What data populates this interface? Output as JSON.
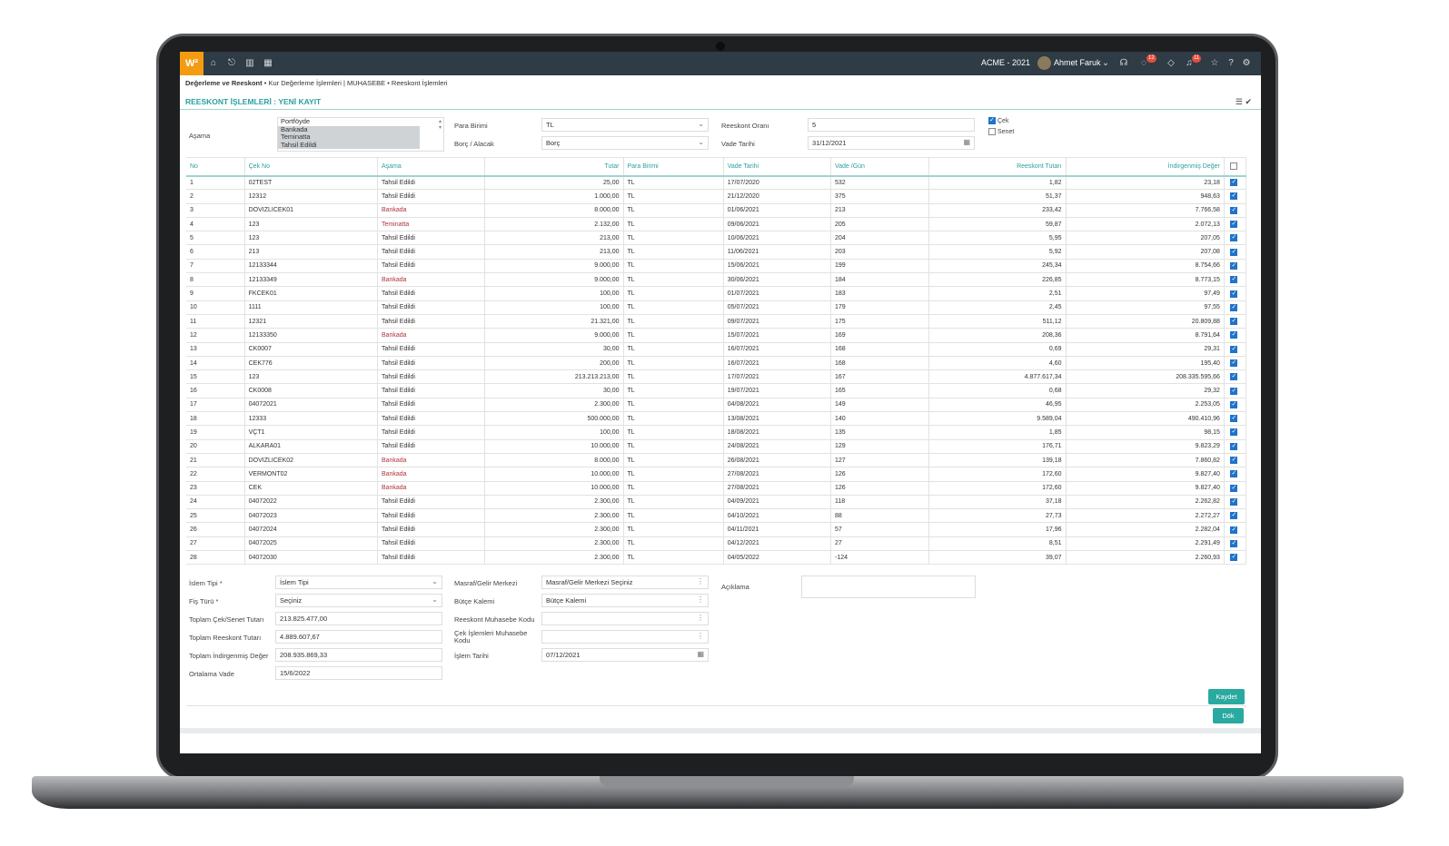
{
  "topbar": {
    "logo": "W²",
    "company": "ACME - 2021",
    "user": "Ahmet Faruk",
    "badge_chat": "12",
    "badge_notif": "11",
    "icons": [
      "home-icon",
      "export-icon",
      "chart-icon",
      "calendar-icon",
      "headset-icon",
      "chat-icon",
      "comment-icon",
      "bell-icon",
      "star-icon",
      "help-icon",
      "gear-icon"
    ]
  },
  "breadcrumb": {
    "root": "Değerleme ve Reeskont",
    "level1": "Kur Değerleme İşlemleri | MUHASEBE",
    "level2": "Reeskont İşlemleri"
  },
  "page_title": "REESKONT İŞLEMLERİ : YENİ KAYIT",
  "filters": {
    "asama_label": "Aşama",
    "asama_options": [
      "Portföyde",
      "Bankada",
      "Teminatta",
      "Tahsil Edildi"
    ],
    "para_birimi_label": "Para Birimi",
    "para_birimi_value": "TL",
    "borc_alacak_label": "Borç / Alacak",
    "borc_alacak_value": "Borç",
    "reeskont_orani_label": "Reeskont Oranı",
    "reeskont_orani_value": "5",
    "vade_tarihi_label": "Vade Tarihi",
    "vade_tarihi_value": "31/12/2021",
    "cek_label": "Çek",
    "senet_label": "Senet"
  },
  "table": {
    "headers": [
      "No",
      "Çek No",
      "Aşama",
      "Tutar",
      "Para Birimi",
      "Vade Tarihi",
      "Vade /Gün",
      "Reeskont Tutarı",
      "İndirgenmiş Değer"
    ],
    "rows": [
      [
        "1",
        "02TEST",
        "Tahsil Edildi",
        "25,00",
        "TL",
        "17/07/2020",
        "532",
        "1,82",
        "23,18"
      ],
      [
        "2",
        "12312",
        "Tahsil Edildi",
        "1.000,00",
        "TL",
        "21/12/2020",
        "375",
        "51,37",
        "948,63"
      ],
      [
        "3",
        "DOVIZLICEK01",
        "Bankada",
        "8.000,00",
        "TL",
        "01/06/2021",
        "213",
        "233,42",
        "7.766,58"
      ],
      [
        "4",
        "123",
        "Teminatta",
        "2.132,00",
        "TL",
        "09/06/2021",
        "205",
        "59,87",
        "2.072,13"
      ],
      [
        "5",
        "123",
        "Tahsil Edildi",
        "213,00",
        "TL",
        "10/06/2021",
        "204",
        "5,95",
        "207,05"
      ],
      [
        "6",
        "213",
        "Tahsil Edildi",
        "213,00",
        "TL",
        "11/06/2021",
        "203",
        "5,92",
        "207,08"
      ],
      [
        "7",
        "12133344",
        "Tahsil Edildi",
        "9.000,00",
        "TL",
        "15/06/2021",
        "199",
        "245,34",
        "8.754,66"
      ],
      [
        "8",
        "12133349",
        "Bankada",
        "9.000,00",
        "TL",
        "30/06/2021",
        "184",
        "226,85",
        "8.773,15"
      ],
      [
        "9",
        "FKCEK01",
        "Tahsil Edildi",
        "100,00",
        "TL",
        "01/07/2021",
        "183",
        "2,51",
        "97,49"
      ],
      [
        "10",
        "1111",
        "Tahsil Edildi",
        "100,00",
        "TL",
        "05/07/2021",
        "179",
        "2,45",
        "97,55"
      ],
      [
        "11",
        "12321",
        "Tahsil Edildi",
        "21.321,00",
        "TL",
        "09/07/2021",
        "175",
        "511,12",
        "20.809,88"
      ],
      [
        "12",
        "12133350",
        "Bankada",
        "9.000,00",
        "TL",
        "15/07/2021",
        "169",
        "208,36",
        "8.791,64"
      ],
      [
        "13",
        "CK0007",
        "Tahsil Edildi",
        "30,00",
        "TL",
        "16/07/2021",
        "168",
        "0,69",
        "29,31"
      ],
      [
        "14",
        "CEK776",
        "Tahsil Edildi",
        "200,00",
        "TL",
        "16/07/2021",
        "168",
        "4,60",
        "195,40"
      ],
      [
        "15",
        "123",
        "Tahsil Edildi",
        "213.213.213,00",
        "TL",
        "17/07/2021",
        "167",
        "4.877.617,34",
        "208.335.595,66"
      ],
      [
        "16",
        "CK0008",
        "Tahsil Edildi",
        "30,00",
        "TL",
        "19/07/2021",
        "165",
        "0,68",
        "29,32"
      ],
      [
        "17",
        "04072021",
        "Tahsil Edildi",
        "2.300,00",
        "TL",
        "04/08/2021",
        "149",
        "46,95",
        "2.253,05"
      ],
      [
        "18",
        "12333",
        "Tahsil Edildi",
        "500.000,00",
        "TL",
        "13/08/2021",
        "140",
        "9.589,04",
        "490.410,96"
      ],
      [
        "19",
        "VÇT1",
        "Tahsil Edildi",
        "100,00",
        "TL",
        "18/08/2021",
        "135",
        "1,85",
        "98,15"
      ],
      [
        "20",
        "ALKARA01",
        "Tahsil Edildi",
        "10.000,00",
        "TL",
        "24/08/2021",
        "129",
        "176,71",
        "9.823,29"
      ],
      [
        "21",
        "DOVIZLICEK02",
        "Bankada",
        "8.000,00",
        "TL",
        "26/08/2021",
        "127",
        "139,18",
        "7.860,82"
      ],
      [
        "22",
        "VERMONT02",
        "Bankada",
        "10.000,00",
        "TL",
        "27/08/2021",
        "126",
        "172,60",
        "9.827,40"
      ],
      [
        "23",
        "CEK",
        "Bankada",
        "10.000,00",
        "TL",
        "27/08/2021",
        "126",
        "172,60",
        "9.827,40"
      ],
      [
        "24",
        "04072022",
        "Tahsil Edildi",
        "2.300,00",
        "TL",
        "04/09/2021",
        "118",
        "37,18",
        "2.262,82"
      ],
      [
        "25",
        "04072023",
        "Tahsil Edildi",
        "2.300,00",
        "TL",
        "04/10/2021",
        "88",
        "27,73",
        "2.272,27"
      ],
      [
        "26",
        "04072024",
        "Tahsil Edildi",
        "2.300,00",
        "TL",
        "04/11/2021",
        "57",
        "17,96",
        "2.282,04"
      ],
      [
        "27",
        "04072025",
        "Tahsil Edildi",
        "2.300,00",
        "TL",
        "04/12/2021",
        "27",
        "8,51",
        "2.291,49"
      ],
      [
        "28",
        "04072030",
        "Tahsil Edildi",
        "2.300,00",
        "TL",
        "04/05/2022",
        "-124",
        "39,07",
        "2.260,93"
      ]
    ]
  },
  "form": {
    "islem_tipi_label": "İslem Tipi *",
    "islem_tipi_value": "İslem Tipi",
    "fis_turu_label": "Fiş Türü *",
    "fis_turu_value": "Seçiniz",
    "toplam_cek_label": "Toplam Çek/Senet Tutarı",
    "toplam_cek_value": "213.825.477,00",
    "toplam_reeskont_label": "Toplam Reeskont Tutarı",
    "toplam_reeskont_value": "4.889.607,67",
    "toplam_indirgenmis_label": "Toplam İndirgenmiş Değer",
    "toplam_indirgenmis_value": "208.935.869,33",
    "ortalama_vade_label": "Ortalama Vade",
    "ortalama_vade_value": "15/6/2022",
    "masraf_label": "Masraf/Gelir Merkezi",
    "masraf_value": "Masraf/Gelir Merkezi Seçiniz",
    "butce_label": "Bütçe Kalemi",
    "butce_value": "Bütçe Kalemi",
    "reeskont_muh_label": "Reeskont Muhasebe Kodu",
    "cek_muh_label_1": "Çek İşlemleri Muhasebe",
    "cek_muh_label_2": "Kodu",
    "islem_tarihi_label": "İşlem Tarihi",
    "islem_tarihi_value": "07/12/2021",
    "aciklama_label": "Açıklama"
  },
  "buttons": {
    "save": "Kaydet",
    "dok": "Dök"
  }
}
